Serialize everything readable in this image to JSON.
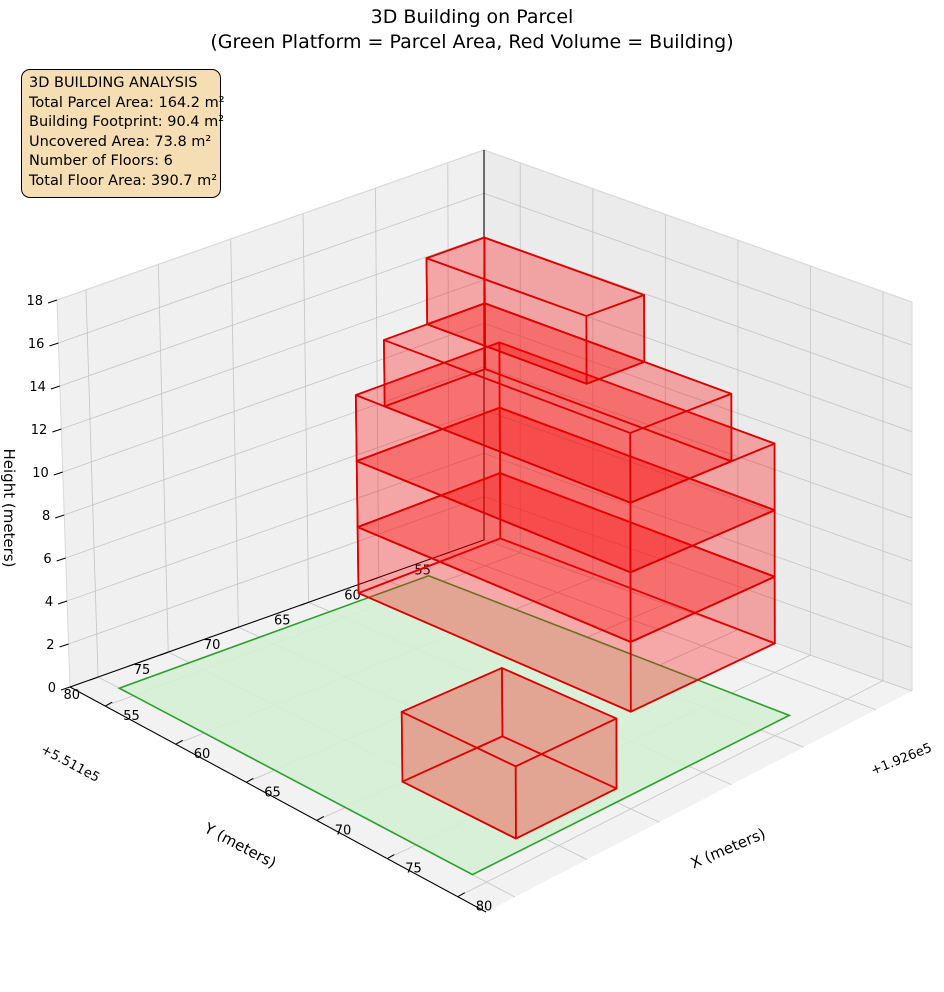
{
  "title_line1": "3D Building on Parcel",
  "title_line2": "(Green Platform = Parcel Area, Red Volume = Building)",
  "info": {
    "heading": "3D BUILDING ANALYSIS",
    "parcel_area": "Total Parcel Area: 164.2 m²",
    "footprint": "Building Footprint: 90.4 m²",
    "uncovered": "Uncovered Area: 73.8 m²",
    "floors": "Number of Floors: 6",
    "floor_area": "Total Floor Area: 390.7 m²"
  },
  "chart_data": {
    "type": "3d-polygons",
    "title": "3D Building on Parcel\n(Green Platform = Parcel Area, Red Volume = Building)",
    "xlabel": "X (meters)",
    "ylabel": "Y (meters)",
    "zlabel": "Height (meters)",
    "x_offset_label": "+1.926e5",
    "y_offset_label": "+5.511e5",
    "x_ticks": [
      "55",
      "60",
      "65",
      "70",
      "75",
      "80"
    ],
    "y_ticks": [
      "55",
      "60",
      "65",
      "70",
      "75",
      "80"
    ],
    "z_ticks": [
      "0",
      "2",
      "4",
      "6",
      "8",
      "10",
      "12",
      "14",
      "16",
      "18"
    ],
    "xlim": [
      52.5,
      82
    ],
    "ylim": [
      52.5,
      82
    ],
    "zlim": [
      0,
      18
    ],
    "grid": true,
    "colors": {
      "parcel_fill": "#d4f0d4",
      "parcel_edge": "#2ca02c",
      "building_fill": "#ff0000",
      "building_edge": "#dd0000",
      "info_box": "#f5deb3"
    },
    "parcel": {
      "z": 0,
      "x_range": [
        54,
        79
      ],
      "y_range": [
        58,
        80
      ]
    },
    "floors": [
      {
        "floor": 1,
        "z_range": [
          0,
          3
        ],
        "x_range": [
          70,
          78
        ],
        "y_range": [
          69,
          76
        ]
      },
      {
        "floor": 2,
        "z_range": [
          3,
          6
        ],
        "x_range": [
          59,
          78
        ],
        "y_range": [
          58,
          68
        ]
      },
      {
        "floor": 3,
        "z_range": [
          6,
          9
        ],
        "x_range": [
          59,
          78
        ],
        "y_range": [
          58,
          68
        ]
      },
      {
        "floor": 4,
        "z_range": [
          9,
          12
        ],
        "x_range": [
          59,
          78
        ],
        "y_range": [
          58,
          68
        ]
      },
      {
        "floor": 5,
        "z_range": [
          12,
          15
        ],
        "x_range": [
          61,
          78
        ],
        "y_range": [
          61,
          68
        ]
      },
      {
        "floor": 6,
        "z_range": [
          15,
          18
        ],
        "x_range": [
          61,
          72
        ],
        "y_range": [
          61,
          65
        ]
      }
    ]
  }
}
